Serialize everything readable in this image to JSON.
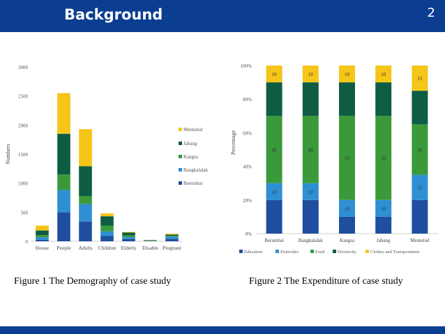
{
  "header": {
    "title": "Background",
    "slide_number": "2",
    "color": "#0b3d91"
  },
  "captions": {
    "figure1": "Figure 1 The Demography of case study",
    "figure2": "Figure 2 The Expenditure of case study"
  },
  "chart_data": [
    {
      "type": "bar",
      "stacked": true,
      "ylabel": "Numbers",
      "ylim": [
        0,
        3000
      ],
      "yticks": [
        "0",
        "500",
        "1000",
        "1500",
        "2000",
        "2500",
        "3000"
      ],
      "categories": [
        "House",
        "People",
        "Adults",
        "Children",
        "Elderly",
        "Disable",
        "Pregnant"
      ],
      "legend_position": "right",
      "series": [
        {
          "name": "Berembai",
          "color": "#1f4e9e",
          "values": [
            25,
            500,
            340,
            90,
            40,
            4,
            40
          ]
        },
        {
          "name": "Bangkalalak",
          "color": "#2e8fd3",
          "values": [
            45,
            380,
            300,
            80,
            30,
            4,
            40
          ]
        },
        {
          "name": "Kangsa",
          "color": "#3a9a3a",
          "values": [
            35,
            270,
            140,
            100,
            30,
            4,
            15
          ]
        },
        {
          "name": "Jabang",
          "color": "#0e5c44",
          "values": [
            80,
            700,
            510,
            160,
            50,
            6,
            20
          ]
        },
        {
          "name": "Mentulud",
          "color": "#f5c518",
          "values": [
            85,
            700,
            640,
            50,
            10,
            4,
            15
          ]
        }
      ]
    },
    {
      "type": "bar",
      "stacked": true,
      "percent": true,
      "ylabel": "Percentage",
      "ylim": [
        0,
        100
      ],
      "yticks": [
        "0%",
        "20%",
        "40%",
        "60%",
        "80%",
        "100%"
      ],
      "categories": [
        "Berumbai",
        "Bangkalalak",
        "Kangsa",
        "Jabang",
        "Mentulud"
      ],
      "legend_position": "bottom",
      "series": [
        {
          "name": "Education",
          "color": "#1f4e9e",
          "values": [
            20,
            20,
            10,
            10,
            20
          ],
          "labels": [
            "",
            "",
            "",
            "",
            ""
          ]
        },
        {
          "name": "Pesticides",
          "color": "#2e8fd3",
          "values": [
            10,
            10,
            10,
            10,
            15
          ],
          "labels": [
            "10",
            "10",
            "10",
            "10",
            "15"
          ]
        },
        {
          "name": "Food",
          "color": "#3a9a3a",
          "values": [
            40,
            40,
            50,
            50,
            30
          ],
          "labels": [
            "40",
            "40",
            "50",
            "50",
            "30"
          ]
        },
        {
          "name": "Electricity",
          "color": "#0e5c44",
          "values": [
            20,
            20,
            20,
            20,
            20
          ],
          "labels": [
            "",
            "",
            "",
            "",
            ""
          ]
        },
        {
          "name": "Clothes and Transportation",
          "color": "#f5c518",
          "values": [
            10,
            10,
            10,
            10,
            15
          ],
          "labels": [
            "10",
            "10",
            "10",
            "10",
            "15"
          ]
        }
      ]
    }
  ]
}
